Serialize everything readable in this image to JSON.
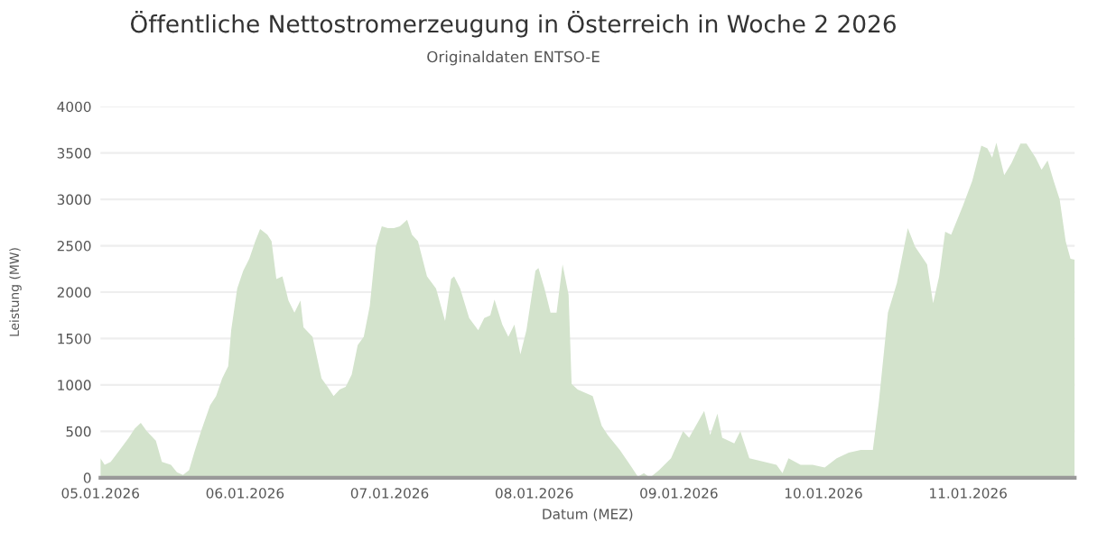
{
  "chart_data": {
    "type": "area",
    "title": "Öffentliche Nettostromerzeugung in Österreich in Woche 2 2026",
    "subtitle": "Originaldaten ENTSO-E",
    "xlabel": "Datum (MEZ)",
    "ylabel": "Leistung (MW)",
    "x": [
      "2026-01-05T00:00",
      "2026-01-05T00:42",
      "2026-01-05T01:42",
      "2026-01-05T03:12",
      "2026-01-05T04:42",
      "2026-01-05T05:42",
      "2026-01-05T06:42",
      "2026-01-05T07:42",
      "2026-01-05T09:12",
      "2026-01-05T10:12",
      "2026-01-05T11:42",
      "2026-01-05T12:42",
      "2026-01-05T13:42",
      "2026-01-05T14:42",
      "2026-01-05T15:42",
      "2026-01-05T16:42",
      "2026-01-05T18:12",
      "2026-01-05T19:12",
      "2026-01-05T20:12",
      "2026-01-05T21:12",
      "2026-01-05T21:42",
      "2026-01-05T22:42",
      "2026-01-05T23:42",
      "2026-01-06T00:42",
      "2026-01-06T01:42",
      "2026-01-06T02:30",
      "2026-01-06T03:42",
      "2026-01-06T04:24",
      "2026-01-06T05:12",
      "2026-01-06T06:12",
      "2026-01-06T07:12",
      "2026-01-06T08:12",
      "2026-01-06T09:12",
      "2026-01-06T09:42",
      "2026-01-06T11:12",
      "2026-01-06T12:42",
      "2026-01-06T13:42",
      "2026-01-06T14:42",
      "2026-01-06T15:42",
      "2026-01-06T16:42",
      "2026-01-06T17:42",
      "2026-01-06T18:42",
      "2026-01-06T19:42",
      "2026-01-06T20:42",
      "2026-01-06T21:42",
      "2026-01-06T22:42",
      "2026-01-06T23:42",
      "2026-01-07T00:42",
      "2026-01-07T01:42",
      "2026-01-07T02:54",
      "2026-01-07T03:42",
      "2026-01-07T04:42",
      "2026-01-07T06:12",
      "2026-01-07T07:42",
      "2026-01-07T09:12",
      "2026-01-07T10:12",
      "2026-01-07T10:42",
      "2026-01-07T11:42",
      "2026-01-07T13:12",
      "2026-01-07T14:42",
      "2026-01-07T15:42",
      "2026-01-07T16:42",
      "2026-01-07T17:24",
      "2026-01-07T18:42",
      "2026-01-07T19:42",
      "2026-01-07T20:42",
      "2026-01-07T21:42",
      "2026-01-07T22:42",
      "2026-01-08T00:12",
      "2026-01-08T00:42",
      "2026-01-08T01:42",
      "2026-01-08T02:42",
      "2026-01-08T03:42",
      "2026-01-08T04:42",
      "2026-01-08T05:42",
      "2026-01-08T06:12",
      "2026-01-08T07:12",
      "2026-01-08T09:42",
      "2026-01-08T11:12",
      "2026-01-08T12:12",
      "2026-01-08T14:12",
      "2026-01-08T16:12",
      "2026-01-08T17:12",
      "2026-01-08T18:12",
      "2026-01-08T19:12",
      "2026-01-08T20:42",
      "2026-01-08T22:42",
      "2026-01-09T00:42",
      "2026-01-09T01:42",
      "2026-01-09T04:12",
      "2026-01-09T05:12",
      "2026-01-09T06:24",
      "2026-01-09T07:12",
      "2026-01-09T09:12",
      "2026-01-09T10:12",
      "2026-01-09T11:42",
      "2026-01-09T14:12",
      "2026-01-09T16:12",
      "2026-01-09T17:12",
      "2026-01-09T18:12",
      "2026-01-09T20:12",
      "2026-01-09T22:12",
      "2026-01-10T00:12",
      "2026-01-10T02:12",
      "2026-01-10T04:12",
      "2026-01-10T06:12",
      "2026-01-10T08:12",
      "2026-01-10T09:12",
      "2026-01-10T10:42",
      "2026-01-10T12:12",
      "2026-01-10T14:00",
      "2026-01-10T15:12",
      "2026-01-10T17:12",
      "2026-01-10T18:12",
      "2026-01-10T19:12",
      "2026-01-10T20:12",
      "2026-01-10T21:12",
      "2026-01-10T23:12",
      "2026-01-11T00:42",
      "2026-01-11T02:12",
      "2026-01-11T03:12",
      "2026-01-11T04:00",
      "2026-01-11T04:42",
      "2026-01-11T06:00",
      "2026-01-11T07:12",
      "2026-01-11T08:42",
      "2026-01-11T09:42",
      "2026-01-11T11:12",
      "2026-01-11T12:12",
      "2026-01-11T13:12",
      "2026-01-11T14:12",
      "2026-01-11T15:12",
      "2026-01-11T16:12",
      "2026-01-11T17:00",
      "2026-01-11T17:42"
    ],
    "series": [
      {
        "color": "#d3e3cc",
        "values": [
          210,
          140,
          170,
          300,
          430,
          530,
          590,
          500,
          400,
          170,
          140,
          60,
          30,
          80,
          300,
          500,
          780,
          880,
          1070,
          1200,
          1590,
          2040,
          2230,
          2360,
          2550,
          2680,
          2620,
          2550,
          2140,
          2170,
          1910,
          1780,
          1910,
          1620,
          1520,
          1070,
          980,
          880,
          950,
          980,
          1110,
          1430,
          1520,
          1850,
          2490,
          2710,
          2690,
          2690,
          2710,
          2780,
          2620,
          2550,
          2170,
          2040,
          1690,
          2140,
          2170,
          2040,
          1720,
          1590,
          1720,
          1750,
          1920,
          1650,
          1520,
          1650,
          1330,
          1590,
          2230,
          2260,
          2040,
          1780,
          1780,
          2300,
          1970,
          1010,
          950,
          880,
          560,
          460,
          300,
          110,
          10,
          50,
          0,
          80,
          210,
          500,
          430,
          720,
          460,
          690,
          430,
          370,
          500,
          210,
          170,
          140,
          50,
          210,
          140,
          140,
          110,
          210,
          270,
          300,
          300,
          820,
          1780,
          2100,
          2690,
          2490,
          2300,
          1880,
          2170,
          2650,
          2620,
          2940,
          3200,
          3580,
          3550,
          3450,
          3610,
          3260,
          3390,
          3600,
          3600,
          3450,
          3320,
          3420,
          3200,
          3000,
          2550,
          2360,
          2350
        ]
      }
    ],
    "xlim": [
      "2026-01-05T00:00",
      "2026-01-11T17:42"
    ],
    "xticks": [
      {
        "value": "2026-01-05",
        "label": "05.01.2026"
      },
      {
        "value": "2026-01-06",
        "label": "06.01.2026"
      },
      {
        "value": "2026-01-07",
        "label": "07.01.2026"
      },
      {
        "value": "2026-01-08",
        "label": "08.01.2026"
      },
      {
        "value": "2026-01-09",
        "label": "09.01.2026"
      },
      {
        "value": "2026-01-10",
        "label": "10.01.2026"
      },
      {
        "value": "2026-01-11",
        "label": "11.01.2026"
      }
    ],
    "ylim": [
      0,
      4000
    ],
    "yticks": [
      0,
      500,
      1000,
      1500,
      2000,
      2500,
      3000,
      3500,
      4000
    ],
    "grid": "y"
  }
}
